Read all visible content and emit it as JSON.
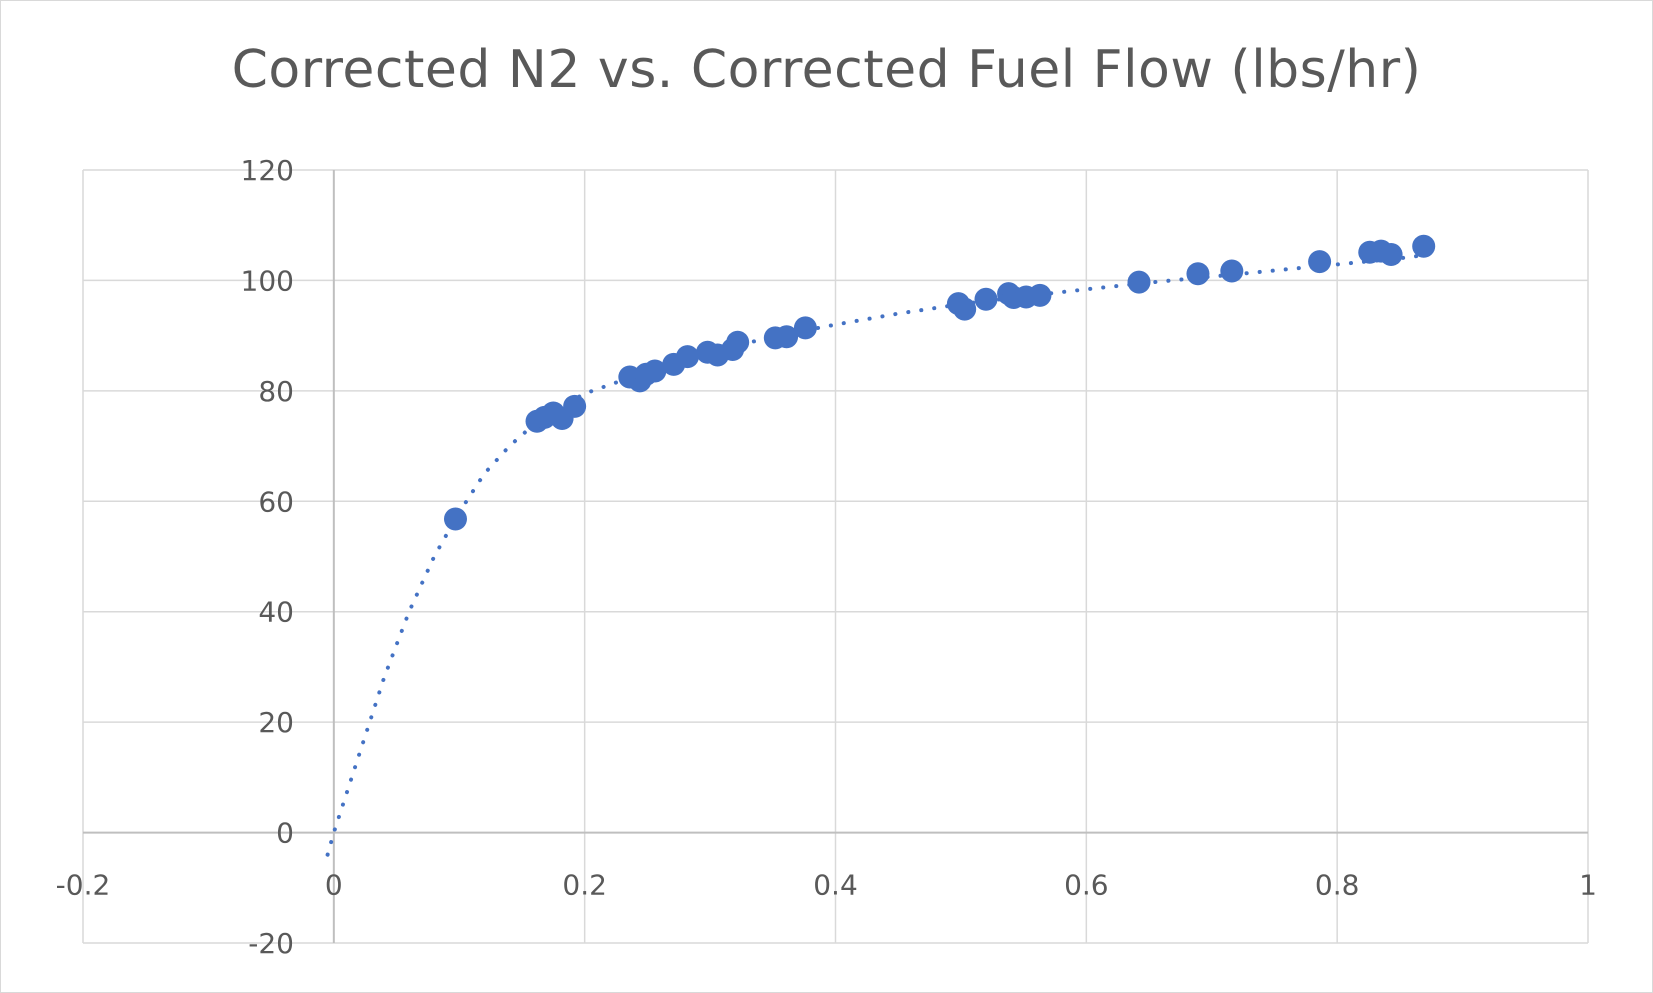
{
  "chart_data": {
    "type": "scatter",
    "title": "Corrected N2 vs. Corrected Fuel Flow (lbs/hr)",
    "xlabel": "",
    "ylabel": "",
    "xlim": [
      -0.2,
      1
    ],
    "ylim": [
      -20,
      120
    ],
    "x_ticks": [
      "-0.2",
      "0",
      "0.2",
      "0.4",
      "0.6",
      "0.8",
      "1"
    ],
    "y_ticks": [
      "120",
      "100",
      "80",
      "60",
      "40",
      "20",
      "0",
      "-20"
    ],
    "grid": true,
    "legend": "none",
    "marker_color": "#4472c4",
    "trendline": {
      "type": "logarithmic",
      "style": "dotted",
      "color": "#4472c4",
      "x_range": [
        -0.005,
        0.87
      ],
      "approx_curve": [
        [
          -0.005,
          -4
        ],
        [
          0.0,
          0
        ],
        [
          0.01,
          7
        ],
        [
          0.02,
          14
        ],
        [
          0.03,
          21
        ],
        [
          0.04,
          28
        ],
        [
          0.05,
          34
        ],
        [
          0.06,
          40
        ],
        [
          0.07,
          45
        ],
        [
          0.08,
          50
        ],
        [
          0.09,
          54
        ],
        [
          0.1,
          58
        ],
        [
          0.12,
          65
        ],
        [
          0.14,
          70
        ],
        [
          0.16,
          74
        ],
        [
          0.18,
          77
        ],
        [
          0.2,
          79.5
        ],
        [
          0.25,
          83.5
        ],
        [
          0.3,
          87
        ],
        [
          0.35,
          89.8
        ],
        [
          0.4,
          92
        ],
        [
          0.45,
          94
        ],
        [
          0.5,
          95.7
        ],
        [
          0.55,
          97.1
        ],
        [
          0.6,
          98.4
        ],
        [
          0.65,
          99.6
        ],
        [
          0.7,
          100.7
        ],
        [
          0.75,
          101.8
        ],
        [
          0.8,
          102.9
        ],
        [
          0.85,
          104
        ],
        [
          0.87,
          104.6
        ]
      ]
    },
    "series": [
      {
        "points": [
          [
            0.097,
            56.8
          ],
          [
            0.162,
            74.5
          ],
          [
            0.168,
            75.2
          ],
          [
            0.175,
            76.0
          ],
          [
            0.182,
            75.0
          ],
          [
            0.192,
            77.2
          ],
          [
            0.236,
            82.5
          ],
          [
            0.244,
            81.8
          ],
          [
            0.249,
            83.0
          ],
          [
            0.256,
            83.6
          ],
          [
            0.271,
            84.8
          ],
          [
            0.282,
            86.2
          ],
          [
            0.298,
            87.0
          ],
          [
            0.306,
            86.5
          ],
          [
            0.318,
            87.5
          ],
          [
            0.322,
            88.8
          ],
          [
            0.352,
            89.6
          ],
          [
            0.361,
            89.8
          ],
          [
            0.376,
            91.4
          ],
          [
            0.498,
            95.8
          ],
          [
            0.503,
            94.8
          ],
          [
            0.52,
            96.6
          ],
          [
            0.538,
            97.6
          ],
          [
            0.542,
            96.9
          ],
          [
            0.552,
            97.0
          ],
          [
            0.563,
            97.3
          ],
          [
            0.642,
            99.7
          ],
          [
            0.689,
            101.2
          ],
          [
            0.716,
            101.7
          ],
          [
            0.786,
            103.4
          ],
          [
            0.826,
            105.1
          ],
          [
            0.835,
            105.3
          ],
          [
            0.843,
            104.7
          ],
          [
            0.869,
            106.2
          ]
        ]
      }
    ]
  }
}
